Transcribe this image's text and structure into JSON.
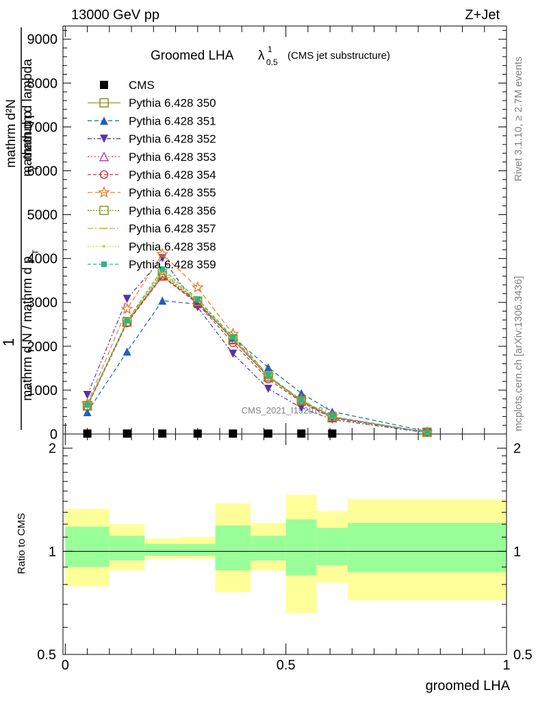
{
  "header": {
    "left": "13000 GeV pp",
    "right": "Z+Jet"
  },
  "plot_title": {
    "main": "Groomed LHA",
    "lambda": "λ",
    "sup": "1",
    "sub": "0.5",
    "tail": "(CMS jet substructure)"
  },
  "side_labels": {
    "right_top": "Rivet 3.1.10, ≥ 2.7M events",
    "right_bottom": "mcplots.cern.ch [arXiv:1306.3436]"
  },
  "ylabel_main": {
    "num_one": "1",
    "num_rest": "mathrm d²N",
    "den_one": "mathrm d N / mathrm d p",
    "den_one_sub": "T",
    "den_rest": "mathrm d p",
    "den_rest_sub": "T",
    "den_rest2": " mathrm d lambda"
  },
  "watermark": "CMS_2021_I1920187",
  "ratio_ylabel": "Ratio to CMS",
  "xlabel": "groomed LHA",
  "colors": {
    "band_outer": "#ffff99",
    "band_inner": "#99ff99"
  },
  "chart_data": [
    {
      "type": "line",
      "xlabel": "groomed LHA",
      "ylabel": "",
      "xlim": [
        -0.0052,
        1.0
      ],
      "ylim": [
        0,
        9300
      ],
      "yticks": [
        0,
        1000,
        2000,
        3000,
        4000,
        5000,
        6000,
        7000,
        8000,
        9000
      ],
      "ytick_labels": [
        "0",
        "1000",
        "2000",
        "3000",
        "4000",
        "5000",
        "6000",
        "7000",
        "8000",
        "9000"
      ],
      "legend": "top-left",
      "x": [
        0.05,
        0.14,
        0.22,
        0.3,
        0.38,
        0.46,
        0.535,
        0.605,
        0.82
      ],
      "series": [
        {
          "name": "CMS",
          "color": "#000000",
          "marker": "square-filled",
          "dash": "none",
          "values": [
            10,
            10,
            10,
            10,
            10,
            10,
            10,
            10,
            0
          ]
        },
        {
          "name": "Pythia 6.428 350",
          "color": "#8c8c1a",
          "marker": "square-open",
          "dash": "solid",
          "values": [
            640,
            2550,
            3600,
            3000,
            2150,
            1300,
            750,
            380,
            40
          ]
        },
        {
          "name": "Pythia 6.428 351",
          "color": "#1f5fbf",
          "marker": "triangle-up-filled",
          "dash": "6,4",
          "values": [
            500,
            1880,
            3040,
            2960,
            2200,
            1520,
            930,
            510,
            60
          ]
        },
        {
          "name": "Pythia 6.428 352",
          "color": "#5533aa",
          "marker": "triangle-down-filled",
          "dash": "6,3,2,3",
          "values": [
            890,
            3080,
            4010,
            2890,
            1830,
            1030,
            600,
            330,
            30
          ]
        },
        {
          "name": "Pythia 6.428 353",
          "color": "#bb3388",
          "marker": "triangle-up-open",
          "dash": "2,3",
          "values": [
            650,
            2560,
            3630,
            3010,
            2150,
            1300,
            750,
            370,
            40
          ]
        },
        {
          "name": "Pythia 6.428 354",
          "color": "#dd2222",
          "marker": "circle-open",
          "dash": "5,3",
          "values": [
            630,
            2530,
            3590,
            2970,
            2080,
            1250,
            730,
            360,
            40
          ]
        },
        {
          "name": "Pythia 6.428 355",
          "color": "#ee7722",
          "marker": "star-open",
          "dash": "7,4",
          "values": [
            690,
            2850,
            4100,
            3340,
            2280,
            1330,
            780,
            400,
            40
          ]
        },
        {
          "name": "Pythia 6.428 356",
          "color": "#889922",
          "marker": "square-open",
          "dash": "2,2",
          "values": [
            650,
            2560,
            3660,
            3030,
            2170,
            1310,
            760,
            390,
            40
          ]
        },
        {
          "name": "Pythia 6.428 357",
          "color": "#ccbb22",
          "marker": "dash-marker",
          "dash": "8,3,2,3",
          "values": [
            660,
            2570,
            3690,
            3050,
            2190,
            1320,
            760,
            390,
            40
          ]
        },
        {
          "name": "Pythia 6.428 358",
          "color": "#bbdd33",
          "marker": "dot",
          "dash": "2,2",
          "values": [
            650,
            2560,
            3720,
            3060,
            2200,
            1330,
            770,
            390,
            40
          ]
        },
        {
          "name": "Pythia 6.428 359",
          "color": "#22bb88",
          "marker": "square-filled-small",
          "dash": "5,3",
          "values": [
            660,
            2580,
            3760,
            3080,
            2210,
            1330,
            770,
            400,
            40
          ]
        }
      ]
    },
    {
      "type": "area",
      "ylabel": "Ratio to CMS",
      "xlabel": "groomed LHA",
      "xlim": [
        -0.0052,
        1.0
      ],
      "ylim": [
        0.5,
        2.2
      ],
      "yticks": [
        0.5,
        1,
        2
      ],
      "ytick_labels": [
        "0.5",
        "1",
        "2"
      ],
      "xticks": [
        0,
        0.5,
        1
      ],
      "xtick_labels": [
        "0",
        "0.5",
        "1"
      ],
      "reference": 1,
      "bins": [
        {
          "lo": 0.0,
          "hi": 0.1,
          "outer": [
            0.79,
            1.33
          ],
          "inner": [
            0.9,
            1.18
          ]
        },
        {
          "lo": 0.1,
          "hi": 0.18,
          "outer": [
            0.88,
            1.2
          ],
          "inner": [
            0.94,
            1.11
          ]
        },
        {
          "lo": 0.18,
          "hi": 0.26,
          "outer": [
            0.95,
            1.09
          ],
          "inner": [
            0.97,
            1.05
          ]
        },
        {
          "lo": 0.26,
          "hi": 0.34,
          "outer": [
            0.95,
            1.1
          ],
          "inner": [
            0.97,
            1.05
          ]
        },
        {
          "lo": 0.34,
          "hi": 0.42,
          "outer": [
            0.76,
            1.38
          ],
          "inner": [
            0.88,
            1.19
          ]
        },
        {
          "lo": 0.42,
          "hi": 0.5,
          "outer": [
            0.88,
            1.21
          ],
          "inner": [
            0.94,
            1.11
          ]
        },
        {
          "lo": 0.5,
          "hi": 0.57,
          "outer": [
            0.66,
            1.46
          ],
          "inner": [
            0.85,
            1.24
          ]
        },
        {
          "lo": 0.57,
          "hi": 0.64,
          "outer": [
            0.81,
            1.31
          ],
          "inner": [
            0.91,
            1.17
          ]
        },
        {
          "lo": 0.64,
          "hi": 1.0,
          "outer": [
            0.72,
            1.42
          ],
          "inner": [
            0.87,
            1.21
          ]
        }
      ]
    }
  ]
}
